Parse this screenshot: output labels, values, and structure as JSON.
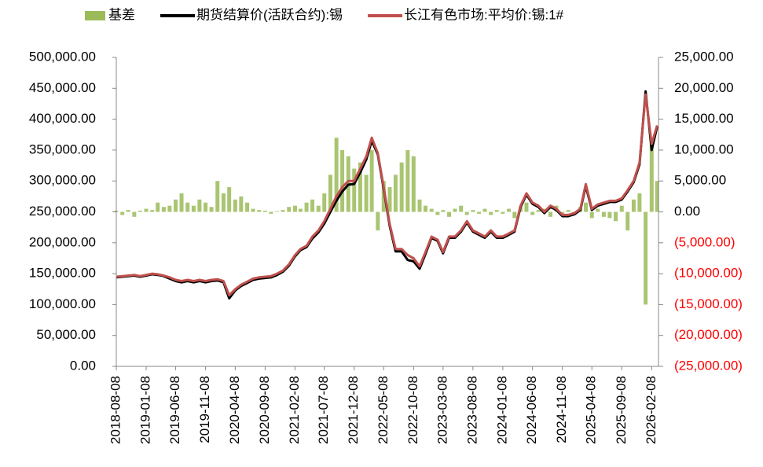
{
  "chart_data": {
    "type": "bar-line",
    "x": [
      "2018-08-08",
      "2018-09-08",
      "2018-10-08",
      "2018-11-08",
      "2018-12-08",
      "2019-01-08",
      "2019-02-08",
      "2019-03-08",
      "2019-04-08",
      "2019-05-08",
      "2019-06-08",
      "2019-07-08",
      "2019-08-08",
      "2019-09-08",
      "2019-10-08",
      "2019-11-08",
      "2019-12-08",
      "2020-01-08",
      "2020-02-08",
      "2020-03-08",
      "2020-04-08",
      "2020-05-08",
      "2020-06-08",
      "2020-07-08",
      "2020-08-08",
      "2020-09-08",
      "2020-10-08",
      "2020-11-08",
      "2020-12-08",
      "2021-01-08",
      "2021-02-08",
      "2021-03-08",
      "2021-04-08",
      "2021-05-08",
      "2021-06-08",
      "2021-07-08",
      "2021-08-08",
      "2021-09-08",
      "2021-10-08",
      "2021-11-08",
      "2021-12-08",
      "2022-01-08",
      "2022-02-08",
      "2022-03-08",
      "2022-04-08",
      "2022-05-08",
      "2022-06-08",
      "2022-07-08",
      "2022-08-08",
      "2022-09-08",
      "2022-10-08",
      "2022-11-08",
      "2022-12-08",
      "2023-01-08",
      "2023-02-08",
      "2023-03-08",
      "2023-04-08",
      "2023-05-08",
      "2023-06-08",
      "2023-07-08",
      "2023-08-08",
      "2023-09-08",
      "2023-10-08",
      "2023-11-08",
      "2023-12-08",
      "2024-01-08",
      "2024-02-08",
      "2024-03-08",
      "2024-04-08",
      "2024-05-08",
      "2024-06-08",
      "2024-07-08",
      "2024-08-08",
      "2024-09-08",
      "2024-10-08",
      "2024-11-08",
      "2024-12-08",
      "2025-01-08",
      "2025-02-08",
      "2025-03-08",
      "2025-04-08",
      "2025-05-08",
      "2025-06-08",
      "2025-07-08",
      "2025-08-08",
      "2025-09-08",
      "2025-10-08",
      "2025-11-08",
      "2025-12-08",
      "2026-01-08",
      "2026-02-08",
      "2026-03-08"
    ],
    "series": [
      {
        "name": "基差",
        "type": "bar",
        "axis": "y2",
        "color": "#9bbb59",
        "values": [
          200,
          -500,
          300,
          -800,
          200,
          500,
          300,
          1500,
          800,
          1000,
          2000,
          3000,
          1500,
          1000,
          2000,
          1500,
          800,
          5000,
          3000,
          4000,
          2000,
          2500,
          1500,
          500,
          300,
          200,
          -300,
          100,
          300,
          800,
          1000,
          500,
          1500,
          2000,
          1000,
          3000,
          6000,
          12000,
          10000,
          9000,
          7000,
          8000,
          6000,
          10000,
          -3000,
          5000,
          4000,
          6000,
          8000,
          10000,
          9000,
          2000,
          1000,
          500,
          -500,
          300,
          -800,
          500,
          1000,
          -500,
          300,
          -300,
          500,
          -500,
          300,
          -300,
          500,
          -1000,
          800,
          1500,
          -500,
          300,
          500,
          -800,
          1000,
          -500,
          300,
          -500,
          800,
          1500,
          -1000,
          500,
          -800,
          -1000,
          -1500,
          1000,
          -3000,
          2000,
          3000,
          -15000,
          12000,
          5000
        ]
      },
      {
        "name": "期货结算价(活跃合约):锡",
        "type": "line",
        "color": "#000000",
        "values": [
          144000,
          145000,
          146000,
          147000,
          145000,
          147000,
          149000,
          148000,
          146000,
          142000,
          138000,
          136000,
          138000,
          136000,
          138000,
          136000,
          138000,
          139000,
          136000,
          110000,
          123000,
          130000,
          135000,
          140000,
          142000,
          143000,
          144000,
          148000,
          153000,
          163000,
          178000,
          188000,
          193000,
          207000,
          217000,
          231000,
          250000,
          268000,
          283000,
          294000,
          295000,
          314000,
          335000,
          365000,
          343000,
          287000,
          227000,
          186000,
          186000,
          172000,
          170000,
          158000,
          182000,
          208000,
          203000,
          183000,
          208000,
          208000,
          218000,
          233000,
          218000,
          213000,
          208000,
          218000,
          208000,
          208000,
          213000,
          218000,
          258000,
          278000,
          263000,
          258000,
          248000,
          258000,
          253000,
          243000,
          243000,
          246000,
          253000,
          292000,
          253000,
          260000,
          263000,
          266000,
          266000,
          270000,
          283000,
          298000,
          327000,
          445000,
          350000,
          388000
        ]
      },
      {
        "name": "长江有色市场:平均价:锡:1#",
        "type": "line",
        "color": "#c0504d",
        "values": [
          145000,
          146000,
          147000,
          148000,
          146000,
          148000,
          150000,
          149000,
          147000,
          144000,
          140000,
          138000,
          140000,
          138000,
          140000,
          138000,
          140000,
          141000,
          138000,
          115000,
          125000,
          132000,
          137000,
          142000,
          144000,
          145000,
          146000,
          150000,
          155000,
          165000,
          180000,
          190000,
          195000,
          210000,
          220000,
          235000,
          255000,
          275000,
          290000,
          300000,
          300000,
          320000,
          340000,
          370000,
          345000,
          290000,
          230000,
          190000,
          190000,
          180000,
          175000,
          162000,
          185000,
          210000,
          205000,
          185000,
          210000,
          210000,
          220000,
          235000,
          220000,
          215000,
          210000,
          220000,
          210000,
          210000,
          215000,
          220000,
          260000,
          280000,
          265000,
          260000,
          250000,
          260000,
          255000,
          245000,
          245000,
          248000,
          255000,
          295000,
          255000,
          262000,
          265000,
          268000,
          268000,
          272000,
          285000,
          300000,
          330000,
          440000,
          360000,
          390000
        ]
      }
    ],
    "xlim": [
      "2018-08-08",
      "2026-03-15"
    ],
    "xticks": [
      "2018-08-08",
      "2019-01-08",
      "2019-06-08",
      "2019-11-08",
      "2020-04-08",
      "2020-09-08",
      "2021-02-08",
      "2021-07-08",
      "2021-12-08",
      "2022-05-08",
      "2022-10-08",
      "2023-03-08",
      "2023-08-08",
      "2024-01-08",
      "2024-06-08",
      "2024-11-08",
      "2025-04-08",
      "2025-09-08",
      "2026-02-08"
    ],
    "ylim": [
      0,
      500000
    ],
    "yticks": [
      {
        "value": 0,
        "label": "0.00"
      },
      {
        "value": 50000,
        "label": "50,000.00"
      },
      {
        "value": 100000,
        "label": "100,000.00"
      },
      {
        "value": 150000,
        "label": "150,000.00"
      },
      {
        "value": 200000,
        "label": "200,000.00"
      },
      {
        "value": 250000,
        "label": "250,000.00"
      },
      {
        "value": 300000,
        "label": "300,000.00"
      },
      {
        "value": 350000,
        "label": "350,000.00"
      },
      {
        "value": 400000,
        "label": "400,000.00"
      },
      {
        "value": 450000,
        "label": "450,000.00"
      },
      {
        "value": 500000,
        "label": "500,000.00"
      }
    ],
    "y2lim": [
      -25000,
      25000
    ],
    "y2ticks": [
      {
        "value": -25000,
        "label": "(25,000.00)"
      },
      {
        "value": -20000,
        "label": "(20,000.00)"
      },
      {
        "value": -15000,
        "label": "(15,000.00)"
      },
      {
        "value": -10000,
        "label": "(10,000.00)"
      },
      {
        "value": -5000,
        "label": "(5,000.00)"
      },
      {
        "value": 0,
        "label": "0.00"
      },
      {
        "value": 5000,
        "label": "5,000.00"
      },
      {
        "value": 10000,
        "label": "10,000.00"
      },
      {
        "value": 15000,
        "label": "15,000.00"
      },
      {
        "value": 20000,
        "label": "20,000.00"
      },
      {
        "value": 25000,
        "label": "25,000.00"
      }
    ],
    "negative_tick_color": "#ff0000",
    "legend": "top"
  }
}
